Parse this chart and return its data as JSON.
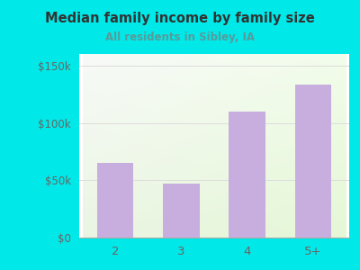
{
  "categories": [
    "2",
    "3",
    "4",
    "5+"
  ],
  "values": [
    65000,
    47000,
    110000,
    133000
  ],
  "bar_color": "#c8aede",
  "title": "Median family income by family size",
  "subtitle": "All residents in Sibley, IA",
  "title_color": "#333333",
  "subtitle_color": "#5a9a9a",
  "outer_bg_color": "#00e8e8",
  "yticks": [
    0,
    50000,
    100000,
    150000
  ],
  "ytick_labels": [
    "$0",
    "$50k",
    "$100k",
    "$150k"
  ],
  "ylim": [
    0,
    160000
  ],
  "tick_color": "#666666",
  "grid_color": "#dddddd",
  "grad_top_left": "#f5faf5",
  "grad_bottom_right": "#e8f5e0"
}
